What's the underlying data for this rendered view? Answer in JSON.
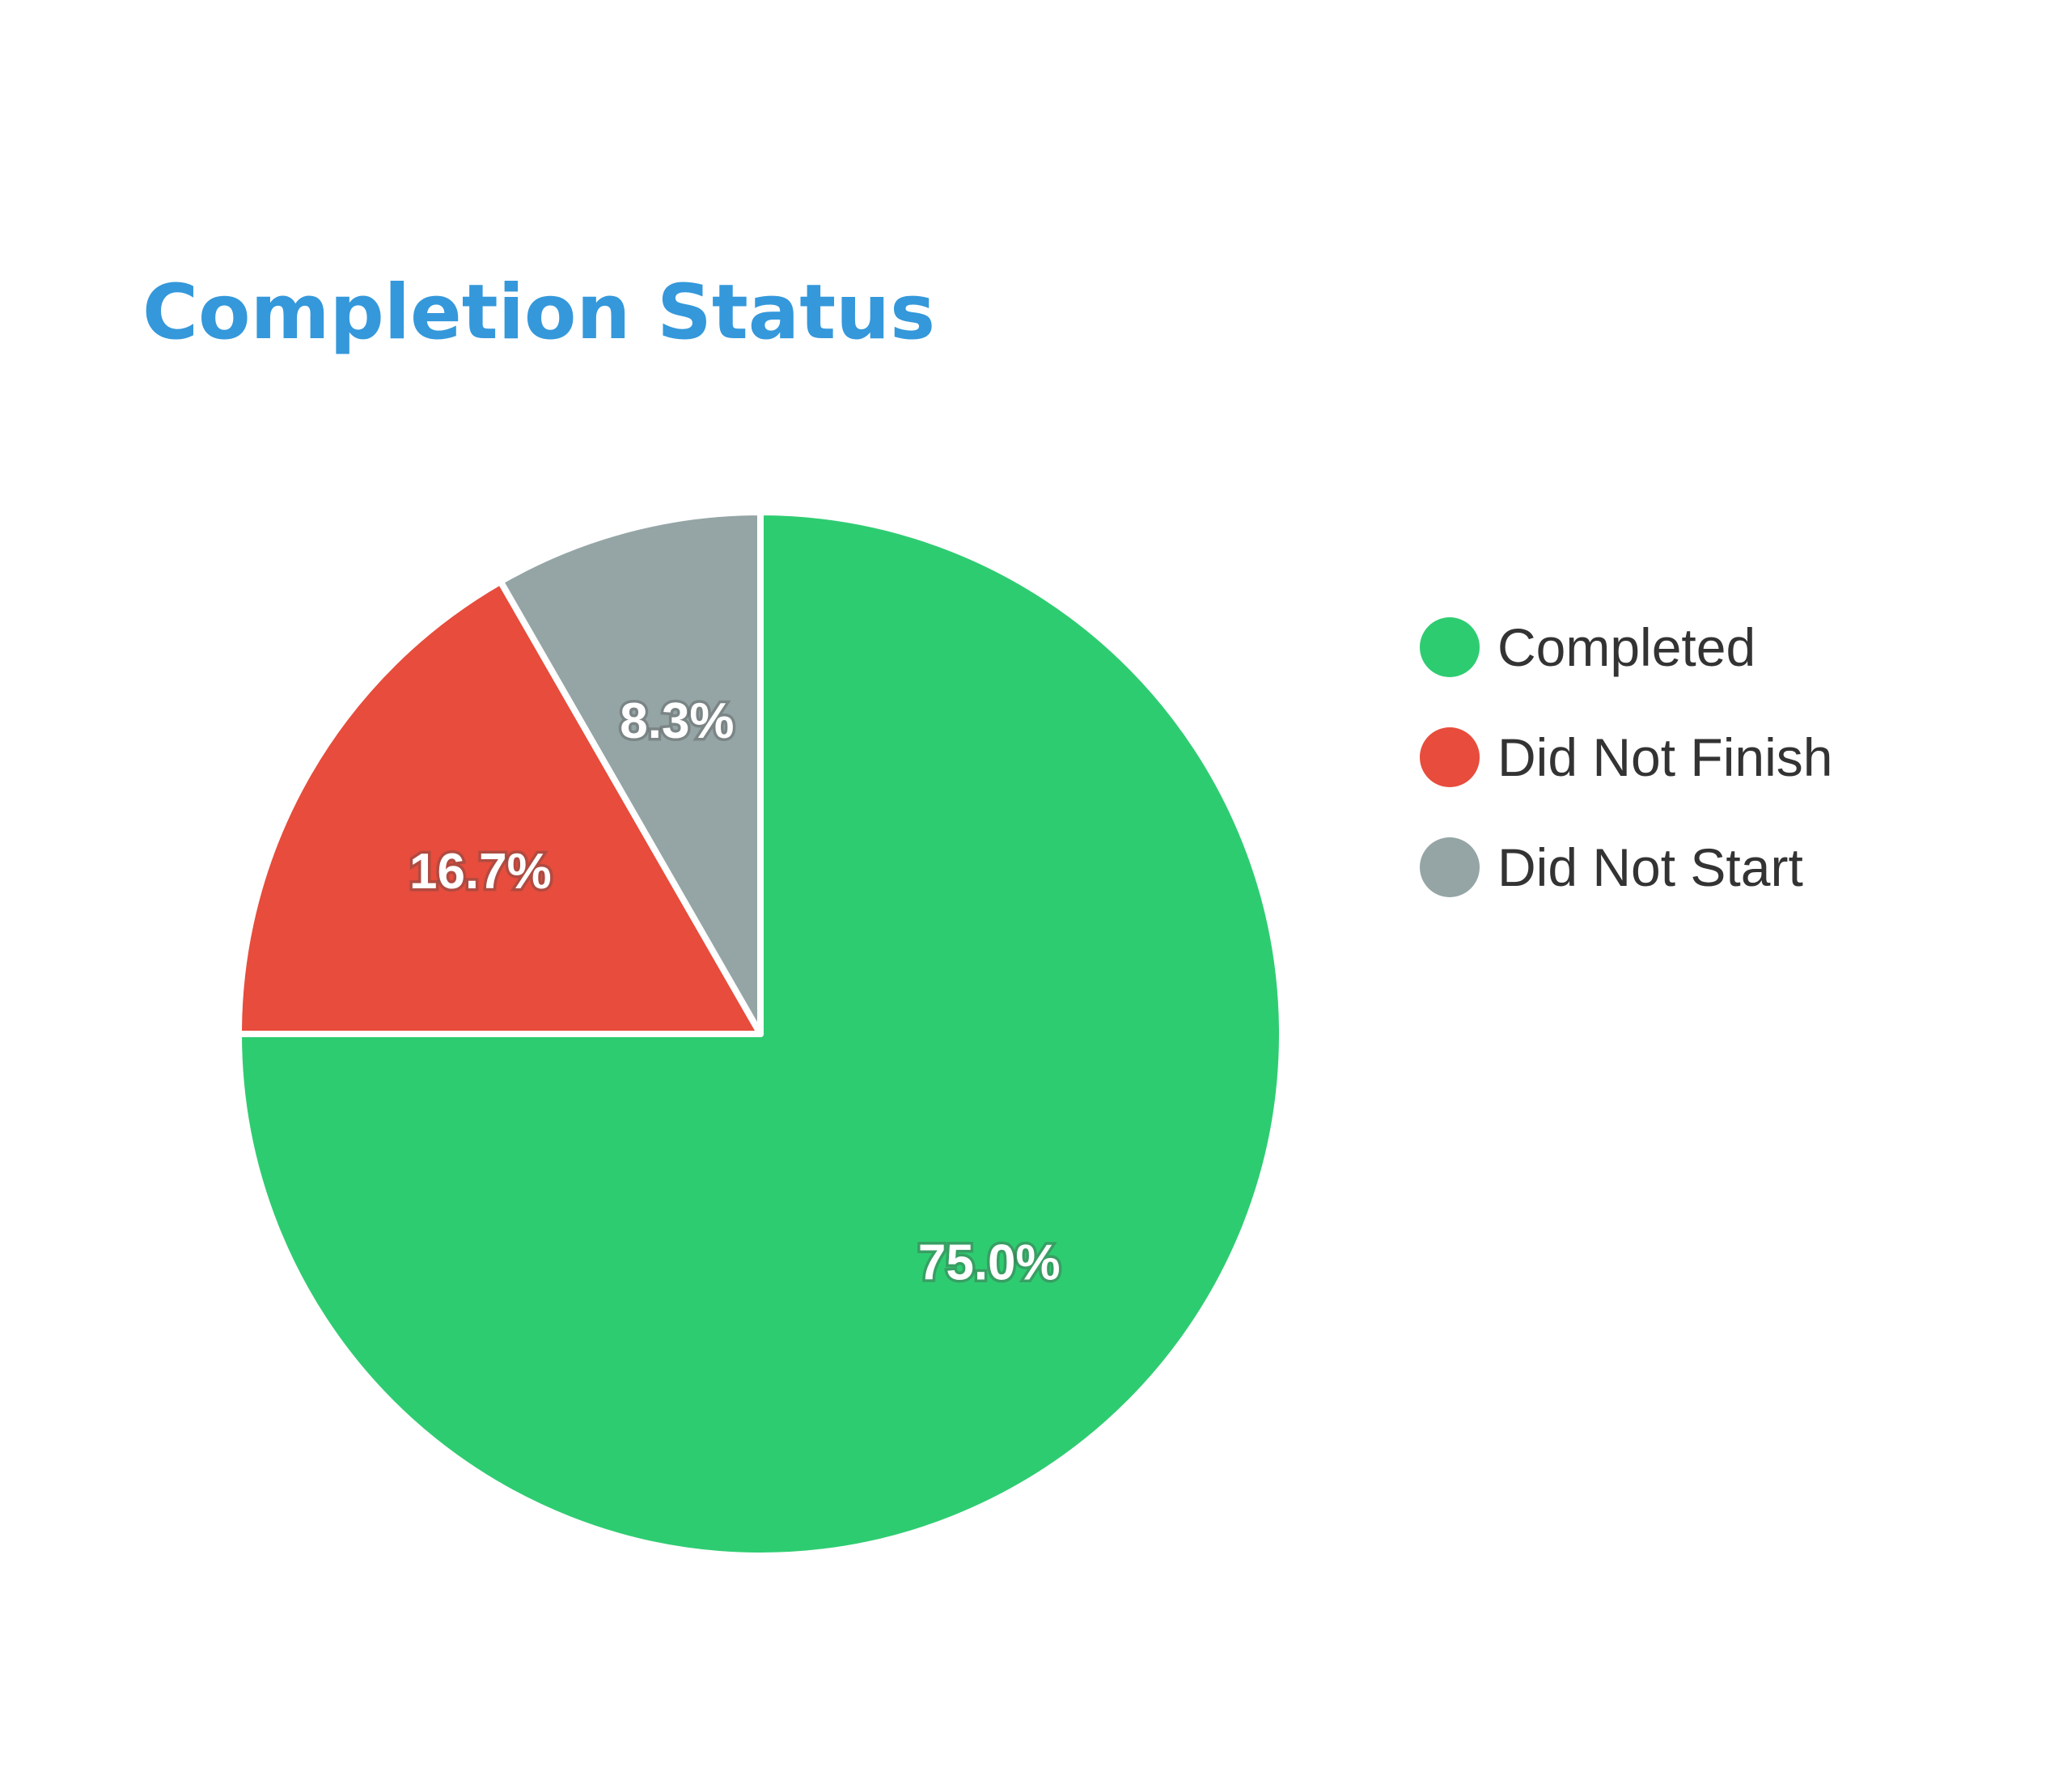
{
  "title": "Completion Status",
  "chart_data": {
    "type": "pie",
    "title": "Completion Status",
    "slices": [
      {
        "label": "Completed",
        "value": 75.0,
        "display": "75.0%",
        "color": "#2ecc71"
      },
      {
        "label": "Did Not Finish",
        "value": 16.7,
        "display": "16.7%",
        "color": "#e74c3c"
      },
      {
        "label": "Did Not Start",
        "value": 8.3,
        "display": "8.3%",
        "color": "#95a5a6"
      }
    ],
    "start_angle": "top",
    "direction": "clockwise",
    "slice_border_color": "#ffffff",
    "legend_position": "right",
    "grid": false
  },
  "legend": {
    "items": [
      {
        "label": "Completed",
        "color": "#2ecc71"
      },
      {
        "label": "Did Not Finish",
        "color": "#e74c3c"
      },
      {
        "label": "Did Not Start",
        "color": "#95a5a6"
      }
    ]
  }
}
